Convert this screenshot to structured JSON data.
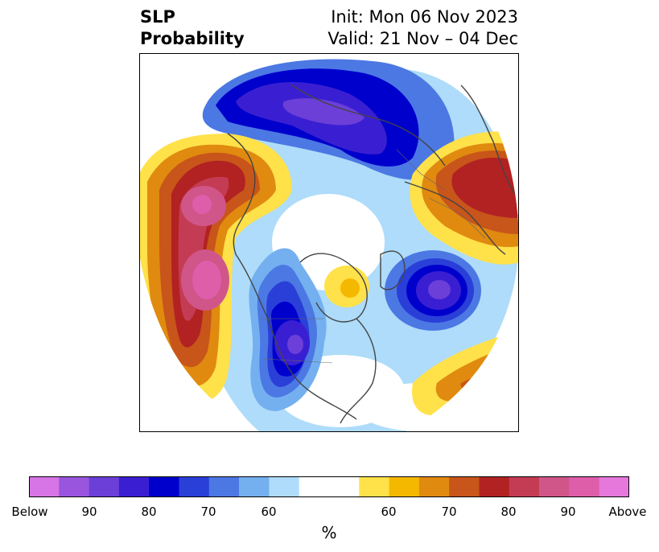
{
  "title": {
    "left_line1": "SLP",
    "left_line2": "Probability",
    "right_line1": "Init: Mon 06 Nov 2023",
    "right_line2": "Valid: 21 Nov – 04 Dec"
  },
  "colorbar": {
    "unit": "%",
    "tick_labels": [
      "Below",
      "90",
      "80",
      "70",
      "60",
      "60",
      "70",
      "80",
      "90",
      "Above"
    ],
    "colors": [
      "#d875e6",
      "#9a55de",
      "#6c3fd8",
      "#3a1fd2",
      "#0000cc",
      "#2a3fd8",
      "#4c78e4",
      "#74b0f0",
      "#aedcfa",
      "#ffffff",
      "#ffe14a",
      "#f5b800",
      "#e08a10",
      "#c8551a",
      "#b22222",
      "#c43c54",
      "#d0568a",
      "#de5eaa",
      "#e678dc"
    ]
  },
  "colors": {
    "land_border": "#444444",
    "frame": "#000000"
  }
}
